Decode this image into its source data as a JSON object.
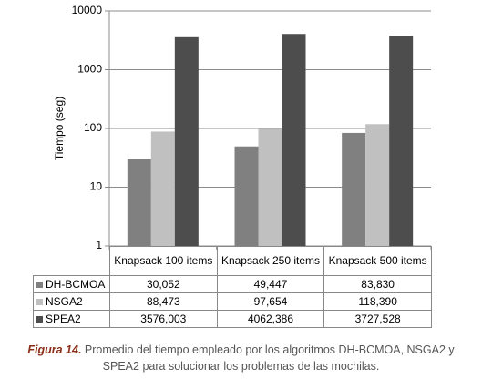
{
  "chart_data": {
    "type": "bar",
    "y_label": "Tiempo (seg)",
    "log_scale": true,
    "grid": true,
    "ylim": [
      1,
      10000
    ],
    "yticks": [
      1,
      10,
      100,
      1000,
      10000
    ],
    "categories": [
      "Knapsack 100 items",
      "Knapsack 250 items",
      "Knapsack 500 items"
    ],
    "series": [
      {
        "name": "DH-BCMOA",
        "color": "#808080",
        "values": [
          30.052,
          49.447,
          83.83
        ],
        "value_labels": [
          "30,052",
          "49,447",
          "83,830"
        ]
      },
      {
        "name": "NSGA2",
        "color": "#c0c0c0",
        "values": [
          88.473,
          97.654,
          118.39
        ],
        "value_labels": [
          "88,473",
          "97,654",
          "118,390"
        ]
      },
      {
        "name": "SPEA2",
        "color": "#4d4d4d",
        "values": [
          3576.003,
          4062.386,
          3727.528
        ],
        "value_labels": [
          "3576,003",
          "4062,386",
          "3727,528"
        ]
      }
    ]
  },
  "caption": {
    "label": "Figura 14.",
    "text": "Promedio del tiempo empleado por los algoritmos DH-BCMOA, NSGA2 y  SPEA2 para solucionar los problemas de las mochilas."
  }
}
